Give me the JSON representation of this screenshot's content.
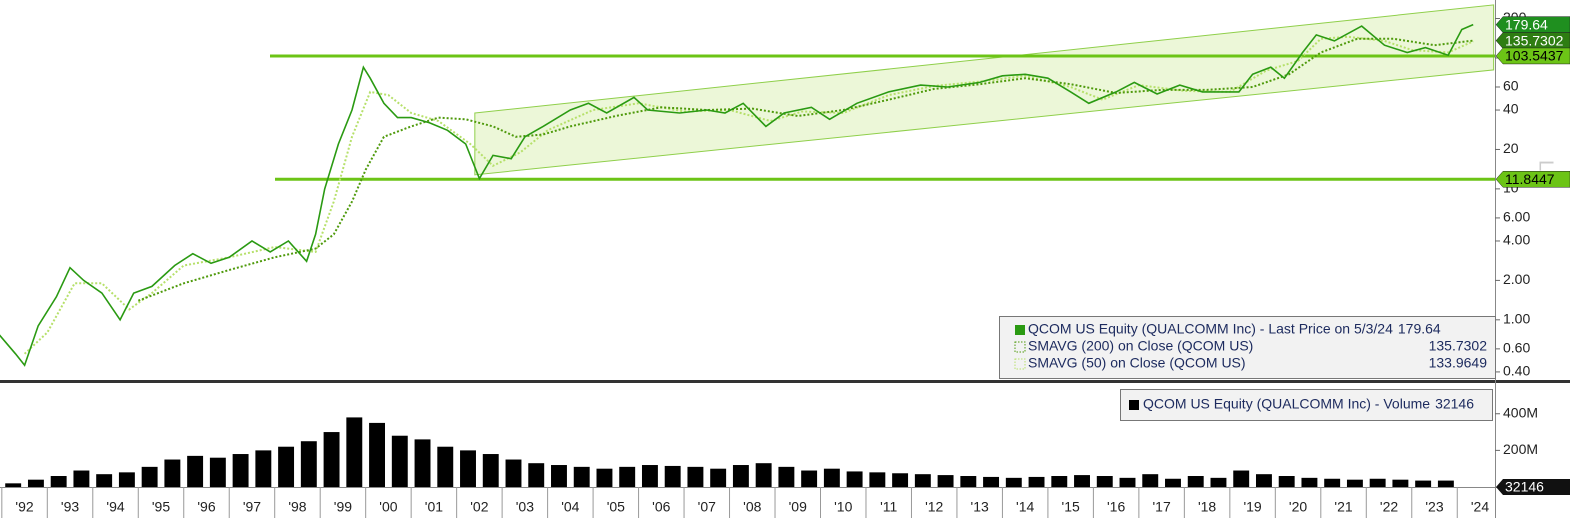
{
  "chart_data": [
    {
      "type": "line",
      "log_scale": true,
      "xlim": [
        1991.96,
        2024.83
      ],
      "ylim": [
        0.347,
        277
      ],
      "yticks": [
        {
          "value": 0.4,
          "label": "0.40"
        },
        {
          "value": 0.6,
          "label": "0.60"
        },
        {
          "value": 1,
          "label": "1.00"
        },
        {
          "value": 2,
          "label": "2.00"
        },
        {
          "value": 4,
          "label": "4.00"
        },
        {
          "value": 6,
          "label": "6.00"
        },
        10,
        20,
        40,
        60,
        100,
        200
      ],
      "side_label": "Lo",
      "series": [
        {
          "name": "QCOM US Equity (QUALCOMM Inc) - Last Price on 5/3/24",
          "color": "#2a9a12",
          "style": "solid",
          "last_value": 179.64,
          "marker_color": "#1f8f1f",
          "x": [
            1991.9,
            1992.3,
            1992.5,
            1992.8,
            1993.2,
            1993.5,
            1993.8,
            1994.2,
            1994.6,
            1994.9,
            1995.3,
            1995.8,
            1996.2,
            1996.6,
            1997.0,
            1997.5,
            1997.9,
            1998.3,
            1998.7,
            1998.9,
            1999.1,
            1999.4,
            1999.7,
            1999.95,
            2000.1,
            2000.4,
            2000.7,
            2001.0,
            2001.4,
            2001.8,
            2002.2,
            2002.5,
            2002.8,
            2003.2,
            2003.5,
            2003.9,
            2004.5,
            2004.9,
            2005.3,
            2005.9,
            2006.2,
            2006.9,
            2007.5,
            2007.9,
            2008.3,
            2008.8,
            2009.2,
            2009.8,
            2010.2,
            2010.8,
            2011.5,
            2012.2,
            2012.8,
            2013.5,
            2014.0,
            2014.5,
            2015.0,
            2015.5,
            2015.9,
            2016.5,
            2016.9,
            2017.4,
            2017.9,
            2018.4,
            2018.9,
            2019.2,
            2019.5,
            2019.9,
            2020.2,
            2020.6,
            2020.9,
            2021.3,
            2021.9,
            2022.4,
            2022.9,
            2023.3,
            2023.8,
            2024.1,
            2024.35
          ],
          "values": [
            0.8,
            0.55,
            0.45,
            0.9,
            1.5,
            2.5,
            2.0,
            1.6,
            1.0,
            1.6,
            1.8,
            2.6,
            3.2,
            2.7,
            3.0,
            4.0,
            3.3,
            4.0,
            2.8,
            4.5,
            10,
            22,
            40,
            85,
            70,
            45,
            35,
            35,
            32,
            28,
            22,
            12,
            18,
            17,
            25,
            30,
            40,
            45,
            38,
            50,
            40,
            38,
            40,
            38,
            45,
            30,
            38,
            42,
            34,
            45,
            55,
            62,
            60,
            65,
            73,
            75,
            70,
            55,
            45,
            55,
            65,
            53,
            62,
            55,
            55,
            55,
            75,
            85,
            70,
            110,
            150,
            135,
            175,
            125,
            110,
            120,
            105,
            165,
            179.64
          ]
        },
        {
          "name": "SMAVG (200)  on Close (QCOM US)",
          "color": "#4f9a0c",
          "style": "dotted",
          "last_value": 135.7302,
          "marker_color": "#2e7d12",
          "x": [
            1995.0,
            1996.0,
            1997.0,
            1998.0,
            1998.9,
            1999.3,
            1999.7,
            2000.0,
            2000.4,
            2001.0,
            2001.6,
            2002.2,
            2002.8,
            2003.3,
            2003.9,
            2004.5,
            2005.5,
            2006.5,
            2007.5,
            2008.5,
            2009.5,
            2010.5,
            2011.5,
            2012.5,
            2013.5,
            2014.5,
            2015.5,
            2016.5,
            2017.5,
            2018.5,
            2019.5,
            2020.3,
            2021.0,
            2021.8,
            2022.6,
            2023.5,
            2024.35
          ],
          "values": [
            1.4,
            1.9,
            2.4,
            3.0,
            3.5,
            4.5,
            8,
            14,
            25,
            30,
            35,
            34,
            30,
            25,
            26,
            30,
            36,
            42,
            40,
            41,
            36,
            40,
            48,
            58,
            63,
            70,
            63,
            54,
            57,
            57,
            60,
            75,
            110,
            140,
            140,
            125,
            135.7302
          ]
        },
        {
          "name": "SMAVG (50)  on Close (QCOM US)",
          "color": "#b6e06a",
          "style": "dotted",
          "last_value": 133.9649,
          "marker_color": "#c8ea8a",
          "x": [
            1992.5,
            1993.0,
            1993.6,
            1994.2,
            1994.8,
            1995.3,
            1996.0,
            1997.0,
            1998.0,
            1998.9,
            1999.3,
            1999.7,
            2000.1,
            2000.5,
            2001.0,
            2001.6,
            2002.3,
            2002.8,
            2003.4,
            2004.0,
            2005.0,
            2006.0,
            2007.0,
            2008.0,
            2008.9,
            2009.6,
            2010.5,
            2011.5,
            2012.5,
            2013.5,
            2014.5,
            2015.5,
            2016.2,
            2017.0,
            2018.0,
            2019.0,
            2019.8,
            2020.5,
            2021.0,
            2021.6,
            2022.4,
            2023.0,
            2023.8,
            2024.35
          ],
          "values": [
            0.55,
            0.8,
            1.9,
            1.9,
            1.2,
            1.6,
            2.6,
            3.0,
            3.6,
            3.3,
            8,
            25,
            55,
            52,
            38,
            33,
            22,
            15,
            19,
            28,
            40,
            45,
            39,
            40,
            33,
            39,
            38,
            52,
            61,
            66,
            73,
            60,
            48,
            62,
            56,
            55,
            80,
            95,
            140,
            145,
            135,
            115,
            110,
            133.9649
          ]
        }
      ],
      "levels": [
        {
          "value": 103.5437,
          "color": "#6cc416"
        },
        {
          "value": 11.8447,
          "color": "#6cc416"
        }
      ],
      "channel": {
        "x": [
          2002.4,
          2024.8
        ],
        "upper": [
          38,
          254
        ],
        "lower": [
          12.8,
          81
        ],
        "color": "#c9e98f"
      }
    },
    {
      "type": "bar",
      "xlim": [
        1991.96,
        2024.83
      ],
      "ylim": [
        0,
        557000000
      ],
      "yticks": [
        {
          "value": 200000000,
          "label": "200M"
        },
        {
          "value": 400000000,
          "label": "400M"
        }
      ],
      "xticks": [
        {
          "value": 1992,
          "label": "'92"
        },
        {
          "value": 1993,
          "label": "'93"
        },
        {
          "value": 1994,
          "label": "'94"
        },
        {
          "value": 1995,
          "label": "'95"
        },
        {
          "value": 1996,
          "label": "'96"
        },
        {
          "value": 1997,
          "label": "'97"
        },
        {
          "value": 1998,
          "label": "'98"
        },
        {
          "value": 1999,
          "label": "'99"
        },
        {
          "value": 2000,
          "label": "'00"
        },
        {
          "value": 2001,
          "label": "'01"
        },
        {
          "value": 2002,
          "label": "'02"
        },
        {
          "value": 2003,
          "label": "'03"
        },
        {
          "value": 2004,
          "label": "'04"
        },
        {
          "value": 2005,
          "label": "'05"
        },
        {
          "value": 2006,
          "label": "'06"
        },
        {
          "value": 2007,
          "label": "'07"
        },
        {
          "value": 2008,
          "label": "'08"
        },
        {
          "value": 2009,
          "label": "'09"
        },
        {
          "value": 2010,
          "label": "'10"
        },
        {
          "value": 2011,
          "label": "'11"
        },
        {
          "value": 2012,
          "label": "'12"
        },
        {
          "value": 2013,
          "label": "'13"
        },
        {
          "value": 2014,
          "label": "'14"
        },
        {
          "value": 2015,
          "label": "'15"
        },
        {
          "value": 2016,
          "label": "'16"
        },
        {
          "value": 2017,
          "label": "'17"
        },
        {
          "value": 2018,
          "label": "'18"
        },
        {
          "value": 2019,
          "label": "'19"
        },
        {
          "value": 2020,
          "label": "'20"
        },
        {
          "value": 2021,
          "label": "'21"
        },
        {
          "value": 2022,
          "label": "'22"
        },
        {
          "value": 2023,
          "label": "'23"
        },
        {
          "value": 2024,
          "label": "'24"
        }
      ],
      "series": [
        {
          "name": "QCOM US Equity (QUALCOMM Inc) - Volume",
          "color": "#000000",
          "last_value": 32146,
          "x": [
            1992.0,
            1992.5,
            1993.0,
            1993.5,
            1994.0,
            1994.5,
            1995.0,
            1995.5,
            1996.0,
            1996.5,
            1997.0,
            1997.5,
            1998.0,
            1998.5,
            1999.0,
            1999.5,
            2000.0,
            2000.5,
            2001.0,
            2001.5,
            2002.0,
            2002.5,
            2003.0,
            2003.5,
            2004.0,
            2004.5,
            2005.0,
            2005.5,
            2006.0,
            2006.5,
            2007.0,
            2007.5,
            2008.0,
            2008.5,
            2009.0,
            2009.5,
            2010.0,
            2010.5,
            2011.0,
            2011.5,
            2012.0,
            2012.5,
            2013.0,
            2013.5,
            2014.0,
            2014.5,
            2015.0,
            2015.5,
            2016.0,
            2016.5,
            2017.0,
            2017.5,
            2018.0,
            2018.5,
            2019.0,
            2019.5,
            2020.0,
            2020.5,
            2021.0,
            2021.5,
            2022.0,
            2022.5,
            2023.0,
            2023.5,
            2024.0
          ],
          "values": [
            20000000.0,
            40000000.0,
            60000000.0,
            90000000.0,
            70000000.0,
            80000000.0,
            110000000.0,
            150000000.0,
            170000000.0,
            160000000.0,
            180000000.0,
            200000000.0,
            220000000.0,
            250000000.0,
            300000000.0,
            380000000.0,
            350000000.0,
            280000000.0,
            260000000.0,
            220000000.0,
            200000000.0,
            180000000.0,
            150000000.0,
            130000000.0,
            120000000.0,
            110000000.0,
            100000000.0,
            110000000.0,
            120000000.0,
            115000000.0,
            110000000.0,
            100000000.0,
            120000000.0,
            130000000.0,
            110000000.0,
            90000000.0,
            100000000.0,
            85000000.0,
            80000000.0,
            75000000.0,
            70000000.0,
            65000000.0,
            60000000.0,
            55000000.0,
            50000000.0,
            55000000.0,
            60000000.0,
            65000000.0,
            60000000.0,
            50000000.0,
            70000000.0,
            45000000.0,
            60000000.0,
            50000000.0,
            90000000.0,
            70000000.0,
            60000000.0,
            50000000.0,
            45000000.0,
            40000000.0,
            45000000.0,
            40000000.0,
            35000000.0,
            35000000.0,
            32146
          ]
        }
      ]
    }
  ]
}
